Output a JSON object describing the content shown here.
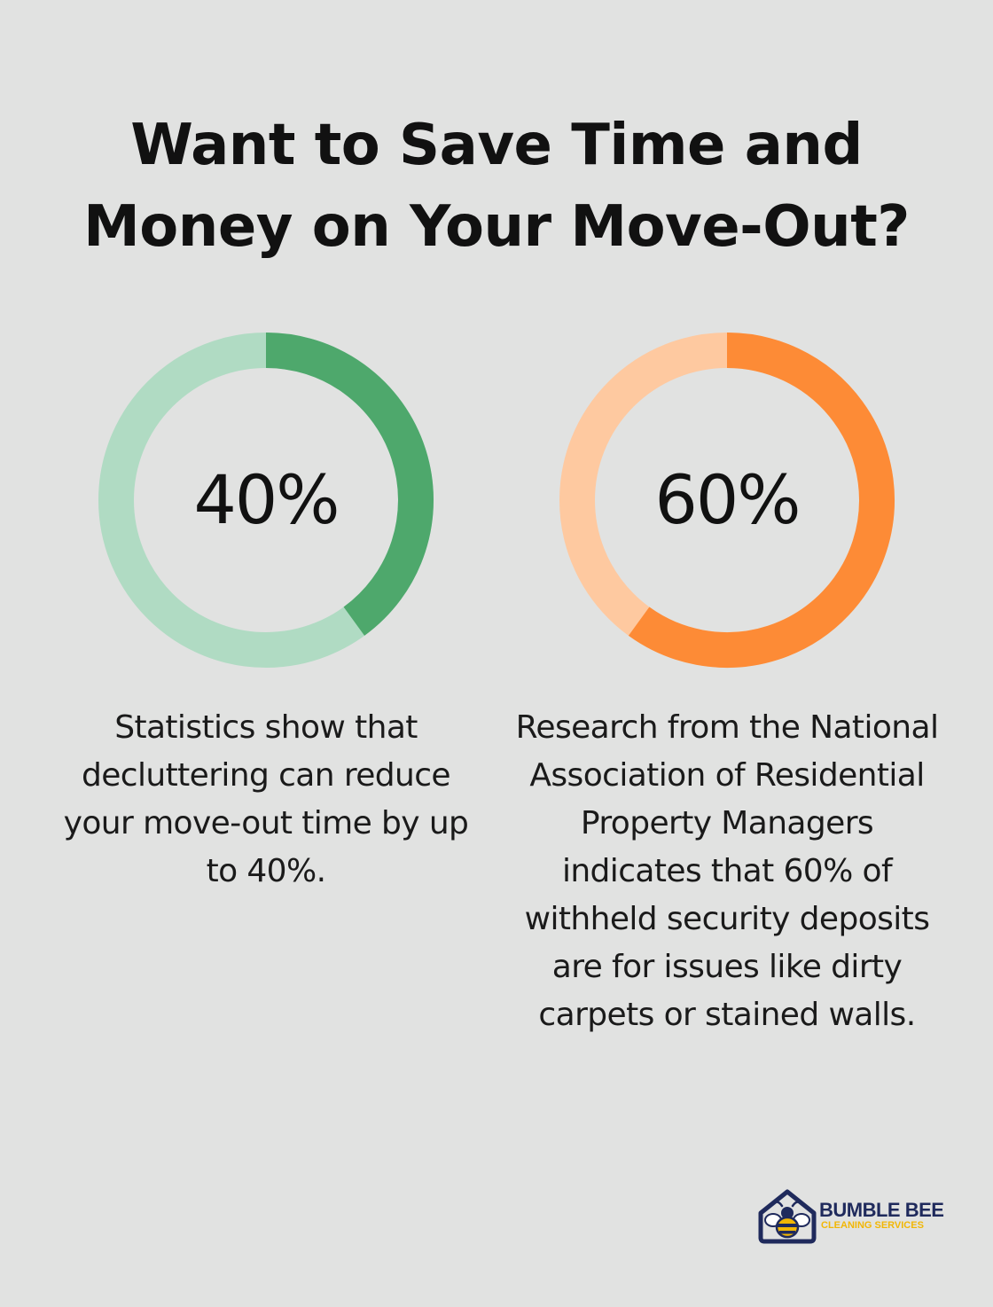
{
  "header": {
    "title_line1": "Want to Save Time and",
    "title_line2": "Money on Your Move-Out?"
  },
  "chart_data": [
    {
      "type": "pie",
      "value": 40,
      "value_label": "40%",
      "description": "Statistics show that decluttering can reduce your move-out time by up to 40%.",
      "colors": {
        "filled": "#4ea86c",
        "track": "#b0dbc3"
      }
    },
    {
      "type": "pie",
      "value": 60,
      "value_label": "60%",
      "description": "Research from the National Association of Residential Property Managers indicates that 60% of withheld security deposits are for issues like dirty carpets or stained walls.",
      "colors": {
        "filled": "#fd8b36",
        "track": "#fec9a0"
      }
    }
  ],
  "logo": {
    "name": "BUMBLE BEE",
    "tagline": "CLEANING SERVICES"
  },
  "colors": {
    "background": "#e1e2e1",
    "logo_navy": "#1f2a5c",
    "logo_yellow": "#f2b705"
  }
}
